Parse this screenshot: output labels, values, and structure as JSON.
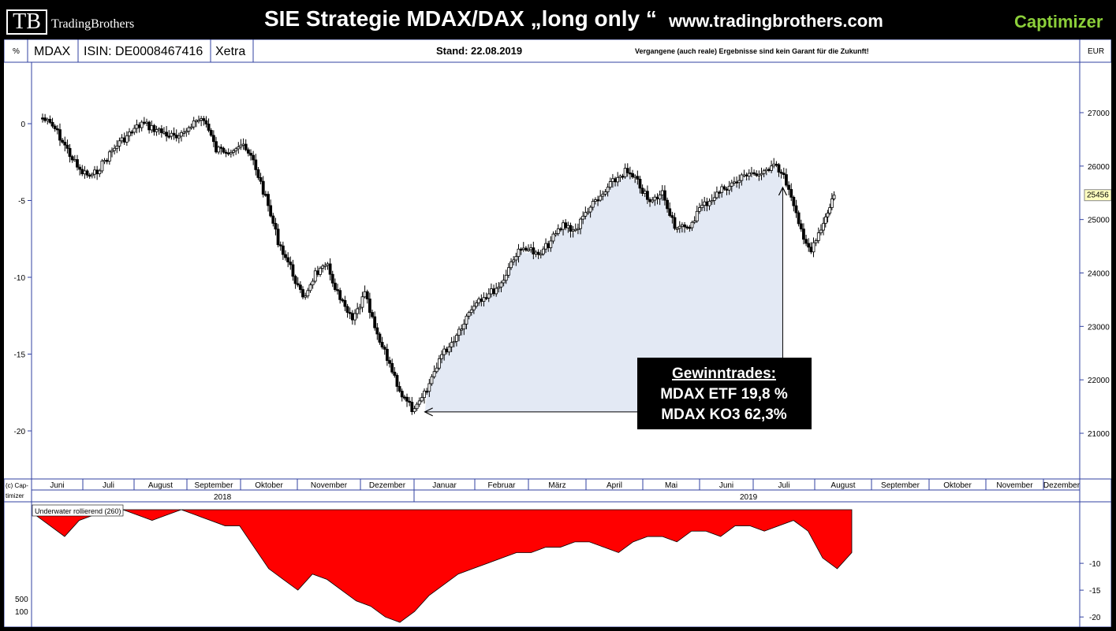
{
  "header": {
    "logo_mark": "TB",
    "logo_text": "TradingBrothers",
    "title": "SIE Strategie MDAX/DAX „long only “",
    "site": "www.tradingbrothers.com",
    "brand": "Captimizer"
  },
  "toolbar": {
    "percent_label": "%",
    "symbol": "MDAX",
    "isin": "ISIN: DE0008467416",
    "exchange": "Xetra",
    "date": "Stand: 22.08.2019",
    "disclaimer": "Vergangene (auch reale) Ergebnisse sind kein Garant für die Zukunft!",
    "currency": "EUR"
  },
  "annotation": {
    "heading": "Gewinntrades:",
    "line1": "MDAX ETF 19,8 %",
    "line2": "MDAX KO3 62,3%"
  },
  "footer": {
    "copyright": "(c) Cap-\ntimizer",
    "year_2018": "2018",
    "year_2019": "2019"
  },
  "chart_data": [
    {
      "type": "candlestick",
      "ylabel_left": "%",
      "ylabel_right": "EUR",
      "left_ticks": [
        0,
        -5,
        -10,
        -15,
        -20
      ],
      "right_ticks": [
        21000,
        22000,
        23000,
        24000,
        25000,
        26000,
        27000
      ],
      "last_price": 25456,
      "months": [
        "Juni",
        "Juli",
        "August",
        "September",
        "Oktober",
        "November",
        "Dezember",
        "Januar",
        "Februar",
        "März",
        "April",
        "Mai",
        "Juni",
        "Juli",
        "August",
        "September",
        "Oktober",
        "November",
        "Dezember"
      ],
      "years": [
        "2018",
        "2019"
      ],
      "trade": {
        "entry_date": "Jan 2019",
        "entry_price": 21400,
        "exit_date": "Jul 2019",
        "exit_price": 25600
      },
      "close_path_eur": [
        [
          "2018-06-01",
          26900
        ],
        [
          "2018-06-08",
          26700
        ],
        [
          "2018-06-15",
          26300
        ],
        [
          "2018-06-22",
          25900
        ],
        [
          "2018-06-29",
          25800
        ],
        [
          "2018-07-06",
          26100
        ],
        [
          "2018-07-13",
          26400
        ],
        [
          "2018-07-20",
          26600
        ],
        [
          "2018-07-27",
          26800
        ],
        [
          "2018-08-03",
          26700
        ],
        [
          "2018-08-10",
          26600
        ],
        [
          "2018-08-17",
          26500
        ],
        [
          "2018-08-24",
          26800
        ],
        [
          "2018-08-31",
          26900
        ],
        [
          "2018-09-07",
          26300
        ],
        [
          "2018-09-14",
          26300
        ],
        [
          "2018-09-21",
          26400
        ],
        [
          "2018-09-28",
          26100
        ],
        [
          "2018-10-05",
          25400
        ],
        [
          "2018-10-12",
          24600
        ],
        [
          "2018-10-19",
          24100
        ],
        [
          "2018-10-26",
          23500
        ],
        [
          "2018-11-02",
          24000
        ],
        [
          "2018-11-09",
          24100
        ],
        [
          "2018-11-16",
          23500
        ],
        [
          "2018-11-23",
          23100
        ],
        [
          "2018-11-30",
          23600
        ],
        [
          "2018-12-07",
          22800
        ],
        [
          "2018-12-14",
          22300
        ],
        [
          "2018-12-21",
          21700
        ],
        [
          "2018-12-28",
          21400
        ],
        [
          "2019-01-04",
          21800
        ],
        [
          "2019-01-11",
          22400
        ],
        [
          "2019-01-18",
          22700
        ],
        [
          "2019-01-25",
          23100
        ],
        [
          "2019-02-01",
          23500
        ],
        [
          "2019-02-08",
          23600
        ],
        [
          "2019-02-15",
          23800
        ],
        [
          "2019-02-22",
          24300
        ],
        [
          "2019-03-01",
          24500
        ],
        [
          "2019-03-08",
          24300
        ],
        [
          "2019-03-15",
          24600
        ],
        [
          "2019-03-22",
          24900
        ],
        [
          "2019-03-29",
          24800
        ],
        [
          "2019-04-05",
          25200
        ],
        [
          "2019-04-12",
          25400
        ],
        [
          "2019-04-19",
          25700
        ],
        [
          "2019-04-26",
          25900
        ],
        [
          "2019-05-03",
          25700
        ],
        [
          "2019-05-10",
          25300
        ],
        [
          "2019-05-17",
          25500
        ],
        [
          "2019-05-24",
          24900
        ],
        [
          "2019-05-31",
          24800
        ],
        [
          "2019-06-07",
          25200
        ],
        [
          "2019-06-14",
          25400
        ],
        [
          "2019-06-21",
          25600
        ],
        [
          "2019-06-28",
          25700
        ],
        [
          "2019-07-05",
          25900
        ],
        [
          "2019-07-12",
          25800
        ],
        [
          "2019-07-19",
          26100
        ],
        [
          "2019-07-26",
          25700
        ],
        [
          "2019-08-02",
          24900
        ],
        [
          "2019-08-09",
          24400
        ],
        [
          "2019-08-16",
          24900
        ],
        [
          "2019-08-22",
          25456
        ]
      ]
    },
    {
      "type": "area",
      "title": "Underwater rollierend (260)",
      "right_ticks": [
        -10,
        -15,
        -20
      ],
      "left_labels": [
        "500",
        "100"
      ],
      "color": "#ff0000",
      "values_pct": [
        -1,
        -3,
        -5,
        -2,
        -1,
        -1,
        0,
        -1,
        -2,
        -1,
        0,
        -1,
        -2,
        -3,
        -3,
        -7,
        -11,
        -13,
        -15,
        -12,
        -13,
        -15,
        -17,
        -18,
        -20,
        -21,
        -19,
        -16,
        -14,
        -12,
        -11,
        -10,
        -9,
        -8,
        -8,
        -7,
        -7,
        -6,
        -6,
        -7,
        -8,
        -6,
        -5,
        -5,
        -6,
        -4,
        -4,
        -5,
        -3,
        -3,
        -4,
        -3,
        -2,
        -4,
        -9,
        -11,
        -8
      ]
    }
  ]
}
